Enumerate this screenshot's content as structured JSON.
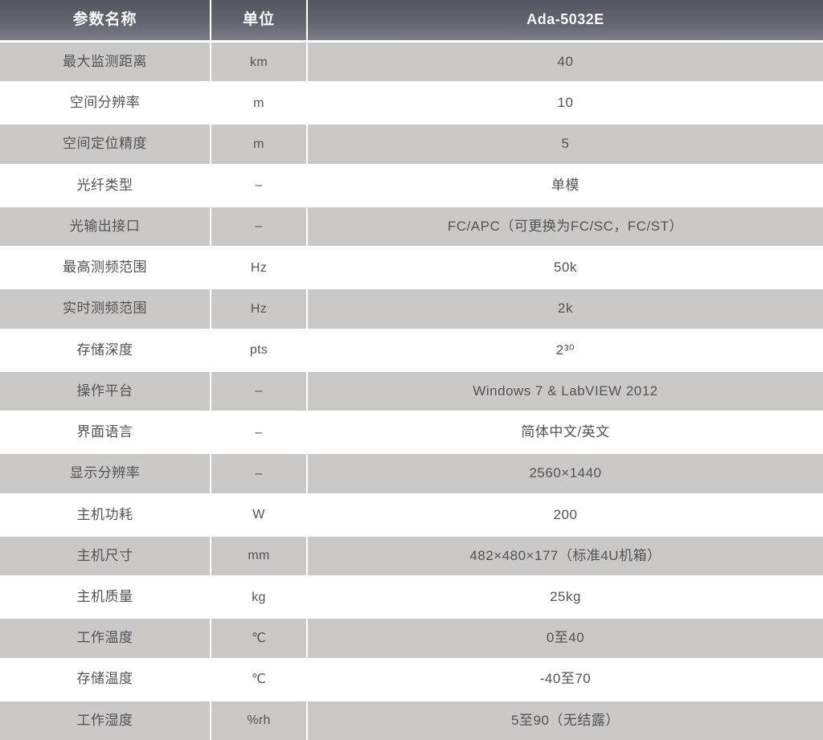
{
  "table": {
    "headers": {
      "param": "参数名称",
      "unit": "单位",
      "model": "Ada-5032E"
    },
    "rows": [
      {
        "name": "最大监测距离",
        "unit": "km",
        "value": "40"
      },
      {
        "name": "空间分辨率",
        "unit": "m",
        "value": "10"
      },
      {
        "name": "空间定位精度",
        "unit": "m",
        "value": "5"
      },
      {
        "name": "光纤类型",
        "unit": "–",
        "value": "单模"
      },
      {
        "name": "光输出接口",
        "unit": "–",
        "value": "FC/APC（可更换为FC/SC，FC/ST）"
      },
      {
        "name": "最高测频范围",
        "unit": "Hz",
        "value": "50k"
      },
      {
        "name": "实时测频范围",
        "unit": "Hz",
        "value": "2k"
      },
      {
        "name": "存储深度",
        "unit": "pts",
        "value": "2³⁰"
      },
      {
        "name": "操作平台",
        "unit": "–",
        "value": "Windows 7 & LabVIEW 2012"
      },
      {
        "name": "界面语言",
        "unit": "–",
        "value": "简体中文/英文"
      },
      {
        "name": "显示分辨率",
        "unit": "–",
        "value": "2560×1440"
      },
      {
        "name": "主机功耗",
        "unit": "W",
        "value": "200"
      },
      {
        "name": "主机尺寸",
        "unit": "mm",
        "value": "482×480×177（标准4U机箱）"
      },
      {
        "name": "主机质量",
        "unit": "kg",
        "value": "25kg"
      },
      {
        "name": "工作温度",
        "unit": "℃",
        "value": "0至40"
      },
      {
        "name": "存储温度",
        "unit": "℃",
        "value": "-40至70"
      },
      {
        "name": "工作湿度",
        "unit": "%rh",
        "value": "5至90（无结露）"
      }
    ]
  },
  "colors": {
    "header_bg_top": "#535660",
    "header_bg_bottom": "#7b7e85",
    "header_text": "#f7f7f7",
    "row_alt_bg": "#cbc9c7",
    "row_bg": "#ffffff",
    "body_text": "#525356"
  }
}
